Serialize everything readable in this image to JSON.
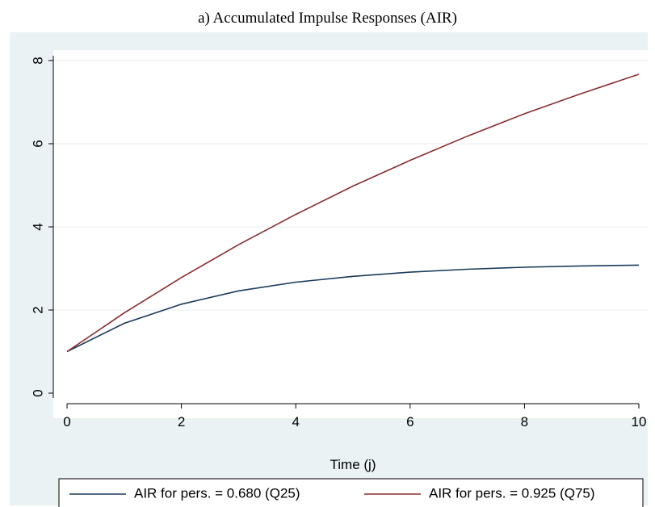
{
  "chart_data": {
    "type": "line",
    "title": "a) Accumulated Impulse Responses (AIR)",
    "xlabel": "Time (j)",
    "ylabel": "",
    "xlim": [
      0,
      10
    ],
    "ylim": [
      0,
      8
    ],
    "x_ticks": [
      0,
      2,
      4,
      6,
      8,
      10
    ],
    "y_ticks": [
      0,
      2,
      4,
      6,
      8
    ],
    "grid": true,
    "legend_position": "bottom",
    "x": [
      0,
      1,
      2,
      3,
      4,
      5,
      6,
      7,
      8,
      9,
      10
    ],
    "series": [
      {
        "name": "AIR for pers. = 0.680 (Q25)",
        "color": "#1a3a5c",
        "values": [
          1.0,
          1.68,
          2.14,
          2.46,
          2.67,
          2.81,
          2.91,
          2.98,
          3.03,
          3.06,
          3.08
        ]
      },
      {
        "name": "AIR for pers. = 0.925 (Q75)",
        "color": "#8b2d2d",
        "values": [
          1.0,
          1.93,
          2.78,
          3.57,
          4.3,
          4.98,
          5.6,
          6.18,
          6.72,
          7.21,
          7.67
        ]
      }
    ]
  }
}
